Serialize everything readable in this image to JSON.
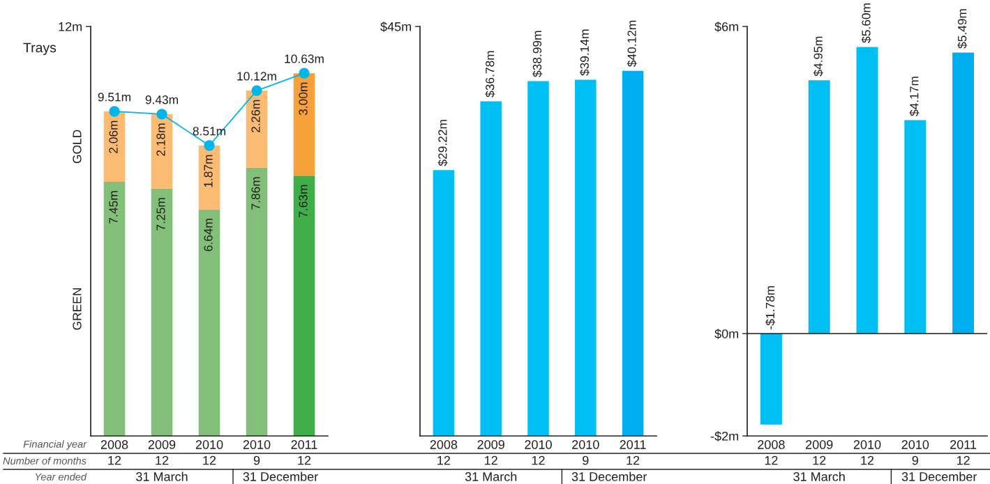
{
  "chart_data": [
    {
      "type": "bar",
      "stacked": true,
      "title": "Trays",
      "categories": [
        "2008\n12",
        "2009\n12",
        "2010\n12",
        "2010\n9",
        "2011\n12"
      ],
      "series": [
        {
          "name": "GREEN",
          "colors": [
            "#82c07a",
            "#82c07a",
            "#82c07a",
            "#82c07a",
            "#3fae49"
          ],
          "values": [
            7.45,
            7.25,
            6.64,
            7.86,
            7.63
          ],
          "value_labels": [
            "7.45m",
            "7.25m",
            "6.64m",
            "7.86m",
            "7.63m"
          ]
        },
        {
          "name": "GOLD",
          "colors": [
            "#fbbb73",
            "#fbbb73",
            "#fbbb73",
            "#fbbb73",
            "#f7a13a"
          ],
          "values": [
            2.06,
            2.18,
            1.87,
            2.26,
            3.0
          ],
          "value_labels": [
            "2.06m",
            "2.18m",
            "1.87m",
            "2.26m",
            "3.00m"
          ]
        },
        {
          "type": "line",
          "color": "#00b5ec",
          "values": [
            9.51,
            9.43,
            8.51,
            10.12,
            10.63
          ],
          "value_labels": [
            "9.51m",
            "9.43m",
            "8.51m",
            "10.12m",
            "10.63m"
          ]
        }
      ],
      "marker": "circle",
      "ylim": [
        0,
        12
      ],
      "yticks": [
        {
          "value": 12,
          "label": "12m"
        }
      ],
      "annotations": [
        "Financial year",
        "Number of months",
        "Year ended",
        "31 March",
        "31 December"
      ]
    },
    {
      "type": "bar",
      "categories": [
        "2008\n12",
        "2009\n12",
        "2010\n12",
        "2010\n9",
        "2011\n12"
      ],
      "colors": [
        "#00bff3",
        "#00bff3",
        "#00bff3",
        "#00bff3",
        "#00adef"
      ],
      "values": [
        29.22,
        36.78,
        38.99,
        39.14,
        40.12
      ],
      "value_labels": [
        "$29.22m",
        "$36.78m",
        "$38.99m",
        "$39.14m",
        "$40.12m"
      ],
      "ylim": [
        0,
        45
      ],
      "yticks": [
        {
          "value": 45,
          "label": "$45m"
        }
      ],
      "annotations": [
        "31 March",
        "31 December"
      ]
    },
    {
      "type": "bar",
      "categories": [
        "2008\n12",
        "2009\n12",
        "2010\n12",
        "2010\n9",
        "2011\n12"
      ],
      "colors": [
        "#00bff3",
        "#00bff3",
        "#00bff3",
        "#00bff3",
        "#00adef"
      ],
      "values": [
        -1.78,
        4.95,
        5.6,
        4.17,
        5.49
      ],
      "value_labels": [
        "-$1.78m",
        "$4.95m",
        "$5.60m",
        "$4.17m",
        "$5.49m"
      ],
      "ylim": [
        -2,
        6
      ],
      "yticks": [
        {
          "value": -2,
          "label": "-$2m"
        },
        {
          "value": 0,
          "label": "$0m"
        },
        {
          "value": 6,
          "label": "$6m"
        }
      ],
      "ref_lines": [
        {
          "axis": "y",
          "value": 0,
          "color": "#1a1a1a"
        }
      ],
      "annotations": [
        "31 March",
        "31 December"
      ]
    }
  ]
}
